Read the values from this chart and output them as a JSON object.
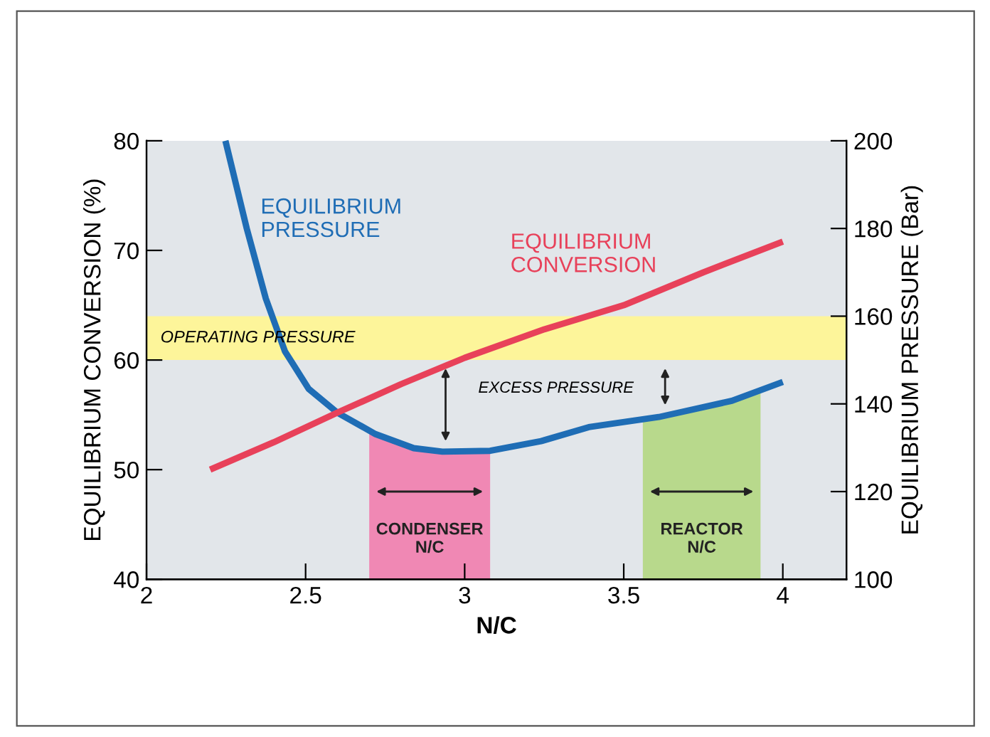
{
  "chart_data": {
    "type": "line",
    "xlabel": "N/C",
    "ylabel": "EQUILIBRIUM CONVERSION (%)",
    "y2label": "EQUILIBRIUM PRESSURE (Bar)",
    "xlim": [
      2,
      4.2
    ],
    "xticks": [
      2,
      2.5,
      3,
      3.5,
      4
    ],
    "ylim": [
      40,
      80
    ],
    "yticks": [
      40,
      50,
      60,
      70,
      80
    ],
    "y2lim": [
      100,
      200
    ],
    "y2ticks": [
      100,
      120,
      140,
      160,
      180,
      200
    ],
    "grid": false,
    "legend": false,
    "line_style": "solid",
    "marker": "none",
    "series": [
      {
        "name": "EQUILIBRIUM\nPRESSURE",
        "color": "#1f6db5",
        "axis": "y2",
        "x": [
          2.248,
          2.315,
          2.375,
          2.435,
          2.51,
          2.6,
          2.72,
          2.84,
          2.93,
          3.08,
          3.24,
          3.39,
          3.61,
          3.84,
          4.0
        ],
        "values": [
          200,
          180,
          164,
          152,
          143.4,
          138,
          133.1,
          129.9,
          129.1,
          129.3,
          131.5,
          134.7,
          137,
          140.7,
          145
        ]
      },
      {
        "name": "EQUILIBRIUM\nCONVERSION",
        "color": "#e8415a",
        "x": [
          2.2,
          2.4,
          2.6,
          2.8,
          3.0,
          3.25,
          3.5,
          3.75,
          4.0
        ],
        "values": [
          50,
          52.5,
          55.2,
          57.8,
          60.2,
          62.8,
          65.0,
          68.0,
          70.8
        ]
      }
    ],
    "bands": [
      {
        "axis": "y2",
        "from": 150,
        "to": 160,
        "label": "OPERATING PRESSURE",
        "color": "#fdf59a"
      },
      {
        "axis": "x",
        "from": 2.7,
        "to": 3.08,
        "label": "CONDENSER\nN/C",
        "color": "#f088b4"
      },
      {
        "axis": "x",
        "from": 3.56,
        "to": 3.93,
        "label": "REACTOR\nN/C",
        "color": "#b8d98c"
      }
    ],
    "annotations": [
      "EXCESS PRESSURE"
    ]
  }
}
